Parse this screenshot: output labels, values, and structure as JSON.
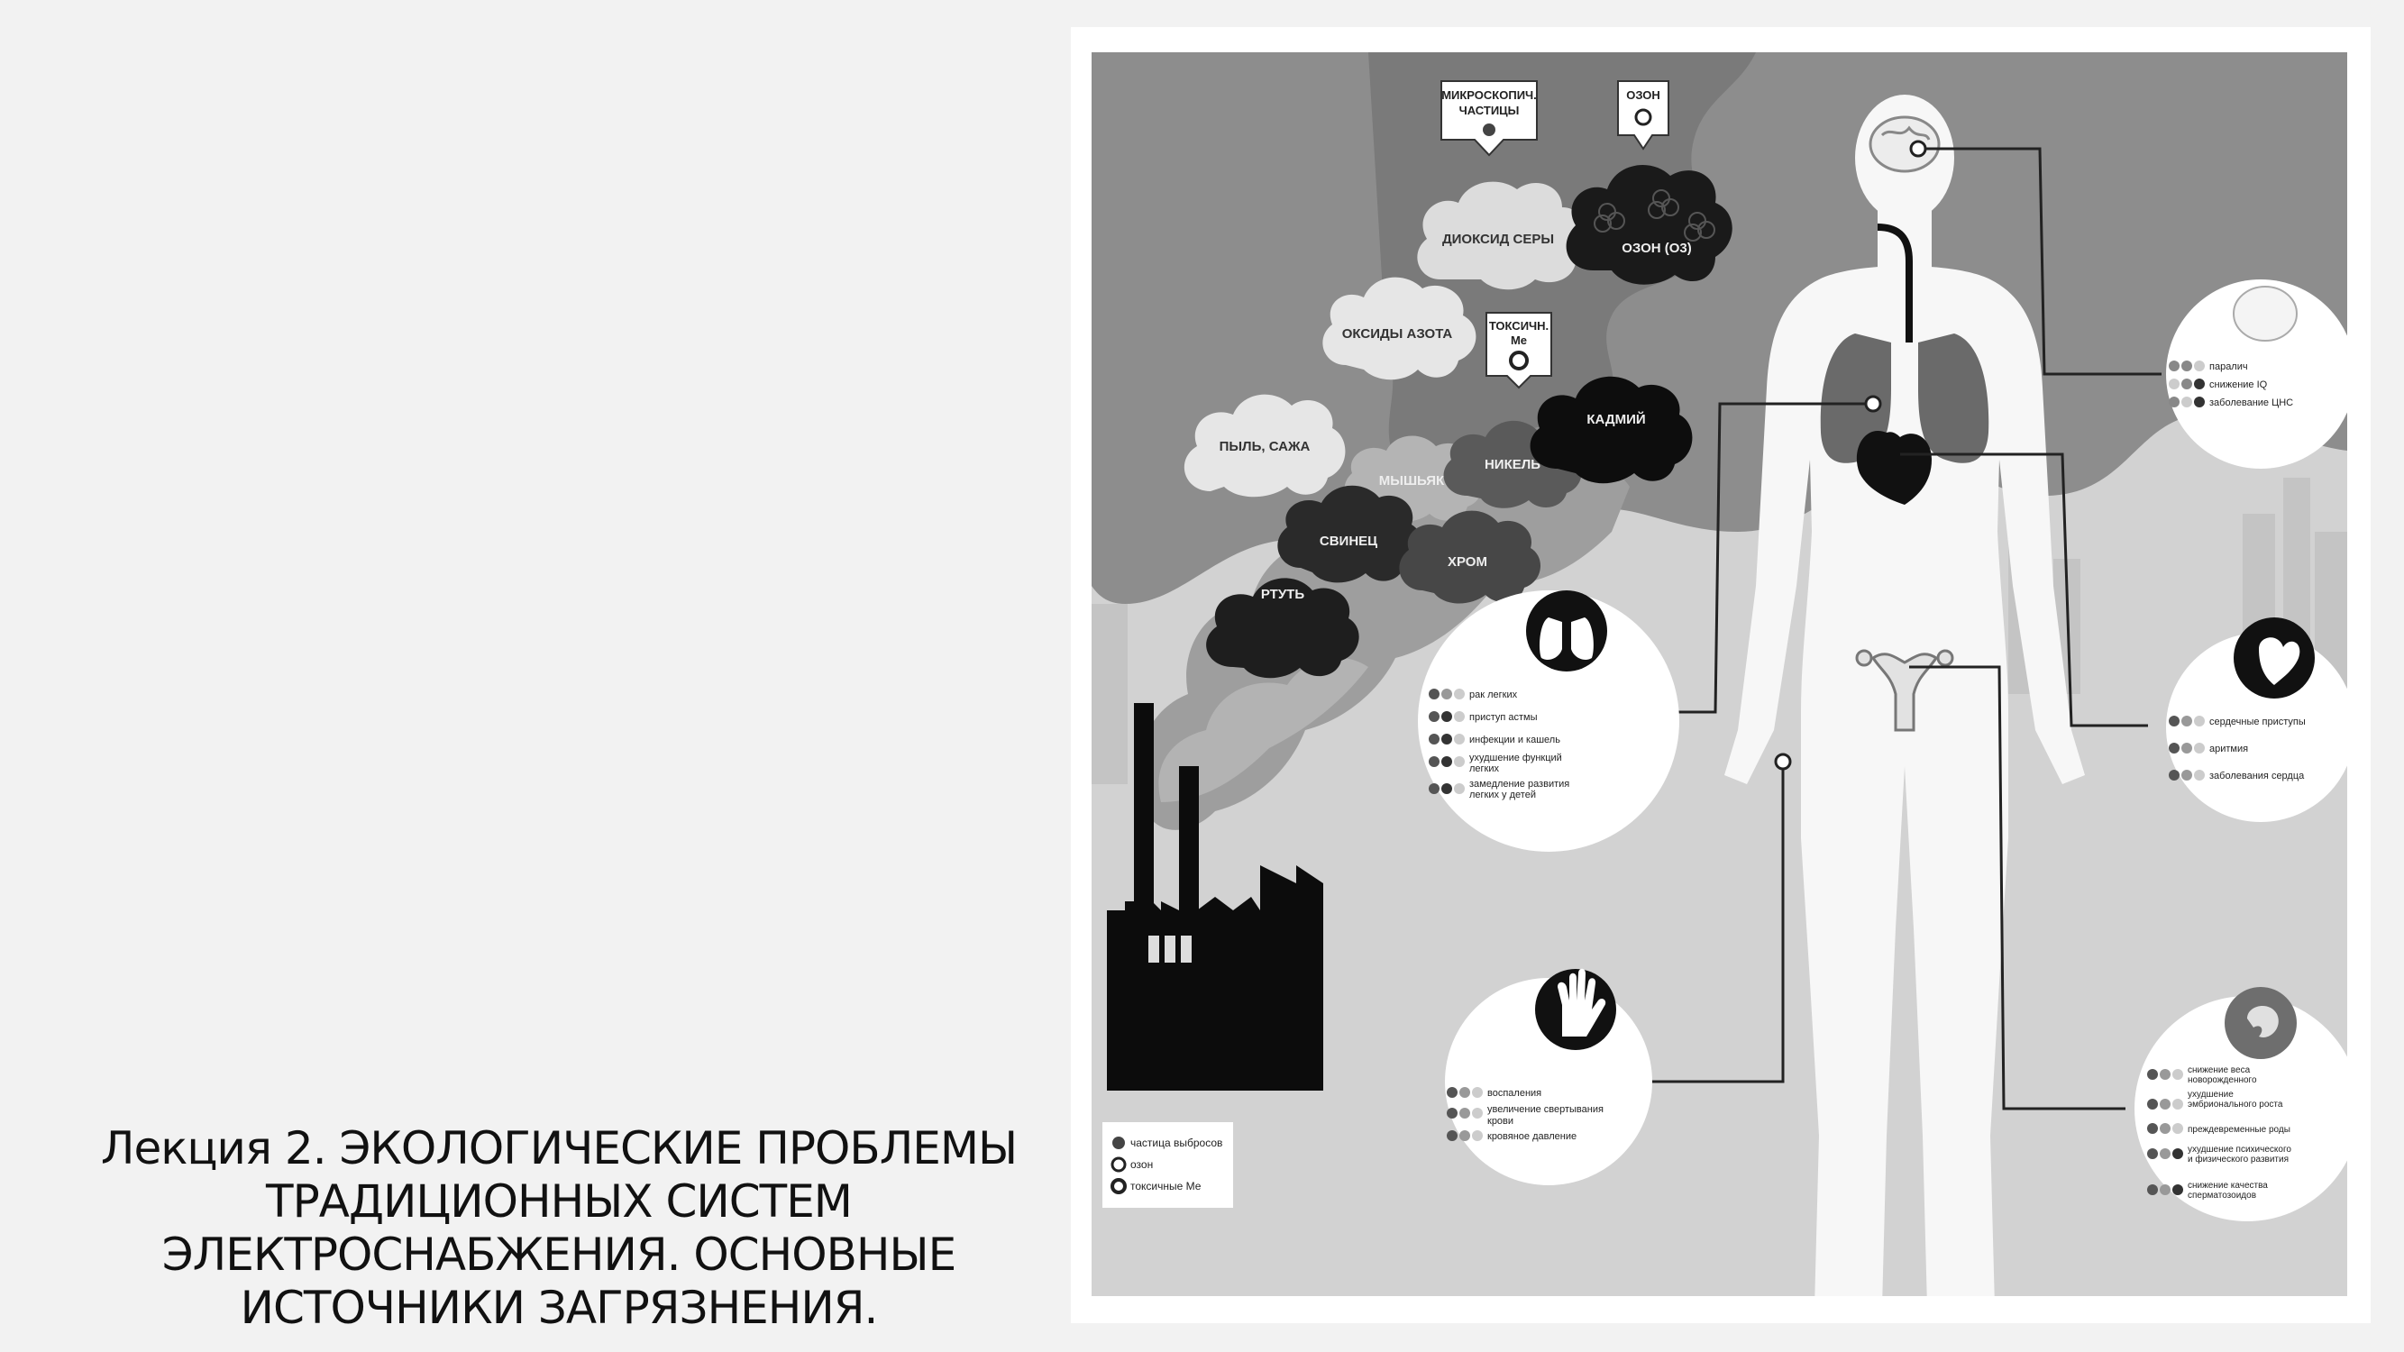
{
  "title": {
    "line1": "Лекция 2. ЭКОЛОГИЧЕСКИЕ ПРОБЛЕМЫ",
    "line2": "ТРАДИЦИОННЫХ СИСТЕМ",
    "line3": "ЭЛЕКТРОСНАБЖЕНИЯ. ОСНОВНЫЕ",
    "line4": "ИСТОЧНИКИ ЗАГРЯЗНЕНИЯ."
  },
  "infographic": {
    "signs": {
      "micro": [
        "МИКРОСКОПИЧ.",
        "ЧАСТИЦЫ"
      ],
      "ozone": "ОЗОН",
      "toxic": [
        "ТОКСИЧН.",
        "Ме"
      ]
    },
    "clouds": {
      "sulfur": "ДИОКСИД СЕРЫ",
      "ozone_o3": "ОЗОН (О3)",
      "nitrogen": "ОКСИДЫ АЗОТА",
      "dust": "ПЫЛЬ, САЖА",
      "arsenic": "МЫШЬЯК",
      "nickel": "НИКЕЛЬ",
      "cadmium": "КАДМИЙ",
      "lead": "СВИНЕЦ",
      "chrome": "ХРОМ",
      "mercury": "РТУТЬ"
    },
    "brain_effects": [
      "паралич",
      "снижение IQ",
      "заболевание ЦНС"
    ],
    "lung_effects": [
      "рак легких",
      "приступ астмы",
      "инфекции и кашель",
      "ухудшение функций",
      "легких",
      "замедление развития",
      "легких у детей"
    ],
    "heart_effects": [
      "сердечные приступы",
      "аритмия",
      "заболевания сердца"
    ],
    "blood_effects": [
      "воспаления",
      "увеличение свертывания",
      "крови",
      "кровяное давление"
    ],
    "repro_effects": [
      "снижение веса",
      "новорожденного",
      "ухудшение",
      "эмбрионального роста",
      "преждевременные роды",
      "ухудшение психического",
      "и физического развития",
      "снижение качества",
      "сперматозоидов"
    ],
    "legend": [
      "частица выбросов",
      "озон",
      "токсичные Ме"
    ]
  }
}
